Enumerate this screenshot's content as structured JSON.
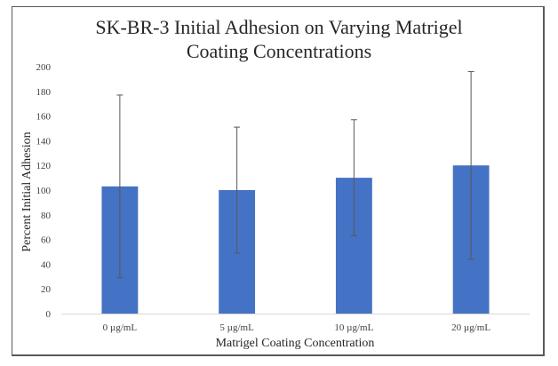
{
  "chart_data": {
    "type": "bar",
    "title": "SK-BR-3 Initial Adhesion on Varying Matrigel Coating Concentrations",
    "title_lines": [
      "SK-BR-3 Initial Adhesion on Varying Matrigel",
      "Coating Concentrations"
    ],
    "xlabel": "Matrigel Coating Concentration",
    "ylabel": "Percent Initial Adhesion",
    "categories": [
      "0 µg/mL",
      "5 µg/mL",
      "10 µg/mL",
      "20 µg/mL"
    ],
    "values": [
      103,
      100,
      110,
      120
    ],
    "error_bars": [
      74,
      51,
      47,
      76
    ],
    "ylim": [
      0,
      200
    ],
    "yticks": [
      0,
      20,
      40,
      60,
      80,
      100,
      120,
      140,
      160,
      180,
      200
    ],
    "grid": false,
    "legend": "none",
    "colors": {
      "bar": "#4472C4",
      "error_bar": "#595959",
      "axis_line": "#D9D9D9",
      "frame": "#595959"
    }
  }
}
